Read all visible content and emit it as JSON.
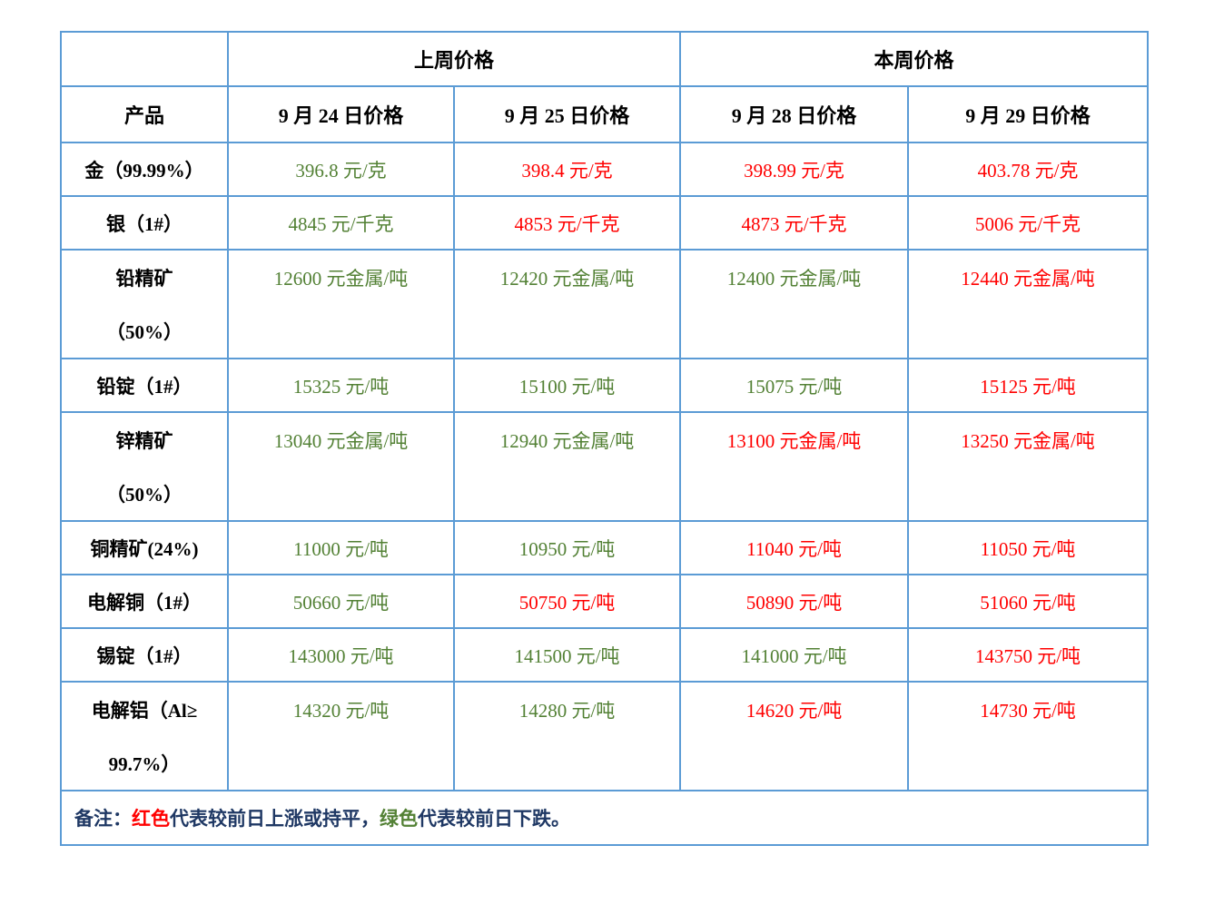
{
  "colors": {
    "border": "#5B9BD5",
    "up": "#FF0000",
    "down": "#538135",
    "note_text": "#1F3864",
    "header_text": "#000000"
  },
  "table": {
    "corner_label": "",
    "group_headers": [
      {
        "label": "上周价格"
      },
      {
        "label": "本周价格"
      }
    ],
    "column_headers": [
      "产品",
      "9 月 24 日价格",
      "9 月 25 日价格",
      "9 月 28 日价格",
      "9 月 29 日价格"
    ],
    "rows": [
      {
        "product": [
          "金（99.99%）"
        ],
        "values": [
          {
            "text": "396.8 元/克",
            "trend": "down"
          },
          {
            "text": "398.4 元/克",
            "trend": "up"
          },
          {
            "text": "398.99 元/克",
            "trend": "up"
          },
          {
            "text": "403.78 元/克",
            "trend": "up"
          }
        ]
      },
      {
        "product": [
          "银（1#）"
        ],
        "values": [
          {
            "text": "4845 元/千克",
            "trend": "down"
          },
          {
            "text": "4853 元/千克",
            "trend": "up"
          },
          {
            "text": "4873 元/千克",
            "trend": "up"
          },
          {
            "text": "5006 元/千克",
            "trend": "up"
          }
        ]
      },
      {
        "product": [
          "铅精矿",
          "（50%）"
        ],
        "values": [
          {
            "text": "12600 元金属/吨",
            "trend": "down"
          },
          {
            "text": "12420 元金属/吨",
            "trend": "down"
          },
          {
            "text": "12400 元金属/吨",
            "trend": "down"
          },
          {
            "text": "12440 元金属/吨",
            "trend": "up"
          }
        ]
      },
      {
        "product": [
          "铅锭（1#）"
        ],
        "values": [
          {
            "text": "15325 元/吨",
            "trend": "down"
          },
          {
            "text": "15100 元/吨",
            "trend": "down"
          },
          {
            "text": "15075 元/吨",
            "trend": "down"
          },
          {
            "text": "15125 元/吨",
            "trend": "up"
          }
        ]
      },
      {
        "product": [
          "锌精矿",
          "（50%）"
        ],
        "values": [
          {
            "text": "13040 元金属/吨",
            "trend": "down"
          },
          {
            "text": "12940 元金属/吨",
            "trend": "down"
          },
          {
            "text": "13100 元金属/吨",
            "trend": "up"
          },
          {
            "text": "13250 元金属/吨",
            "trend": "up"
          }
        ]
      },
      {
        "product": [
          "铜精矿(24%)"
        ],
        "values": [
          {
            "text": "11000 元/吨",
            "trend": "down"
          },
          {
            "text": "10950 元/吨",
            "trend": "down"
          },
          {
            "text": "11040 元/吨",
            "trend": "up"
          },
          {
            "text": "11050 元/吨",
            "trend": "up"
          }
        ]
      },
      {
        "product": [
          "电解铜（1#）"
        ],
        "values": [
          {
            "text": "50660 元/吨",
            "trend": "down"
          },
          {
            "text": "50750 元/吨",
            "trend": "up"
          },
          {
            "text": "50890 元/吨",
            "trend": "up"
          },
          {
            "text": "51060 元/吨",
            "trend": "up"
          }
        ]
      },
      {
        "product": [
          "锡锭（1#）"
        ],
        "values": [
          {
            "text": "143000 元/吨",
            "trend": "down"
          },
          {
            "text": "141500 元/吨",
            "trend": "down"
          },
          {
            "text": "141000 元/吨",
            "trend": "down"
          },
          {
            "text": "143750 元/吨",
            "trend": "up"
          }
        ]
      },
      {
        "product": [
          "电解铝（Al≥",
          "99.7%）"
        ],
        "values": [
          {
            "text": "14320 元/吨",
            "trend": "down"
          },
          {
            "text": "14280 元/吨",
            "trend": "down"
          },
          {
            "text": "14620 元/吨",
            "trend": "up"
          },
          {
            "text": "14730 元/吨",
            "trend": "up"
          }
        ]
      }
    ],
    "note": {
      "parts": [
        {
          "text": "备注：",
          "color": "note"
        },
        {
          "text": "红色",
          "color": "up"
        },
        {
          "text": "代表较前日上涨或持平，",
          "color": "note"
        },
        {
          "text": "绿色",
          "color": "down"
        },
        {
          "text": "代表较前日下跌。",
          "color": "note"
        }
      ]
    }
  }
}
